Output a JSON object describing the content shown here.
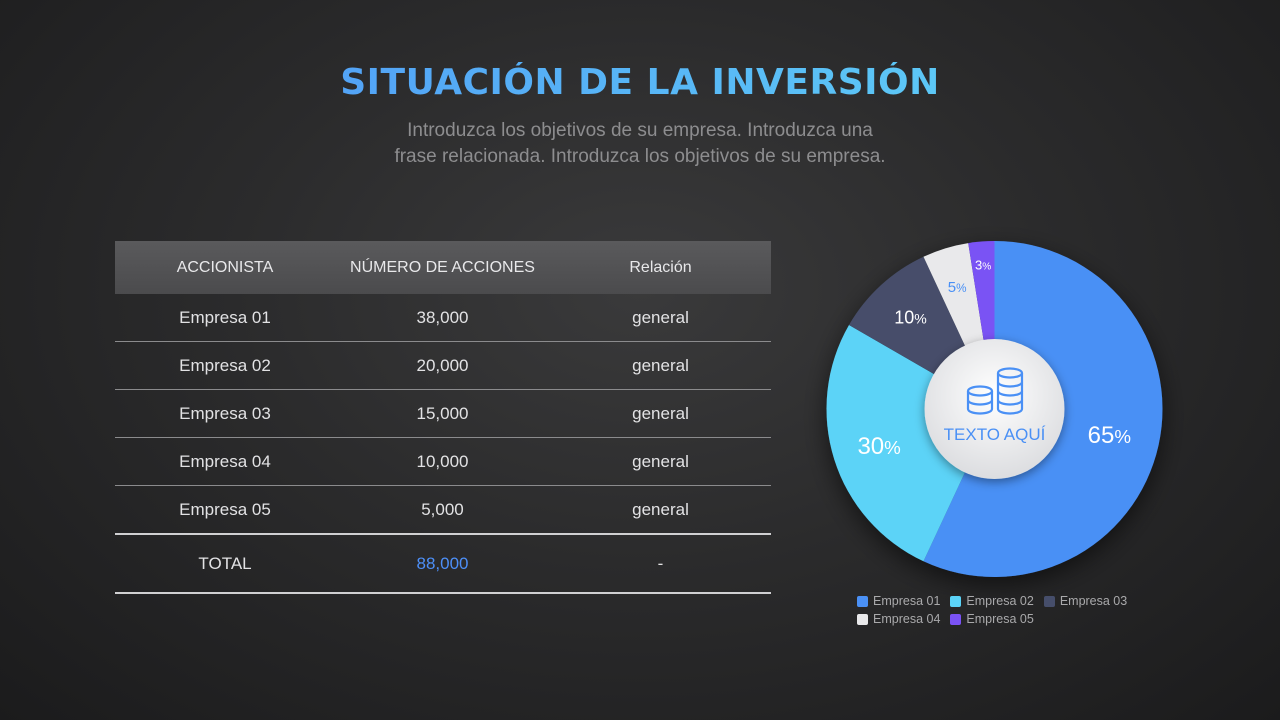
{
  "header": {
    "title": "SITUACIÓN DE LA INVERSIÓN",
    "subtitle_line1": "Introduzca los objetivos de su empresa. Introduzca una",
    "subtitle_line2": "frase relacionada. Introduzca los objetivos de su empresa."
  },
  "table": {
    "headers": [
      "ACCIONISTA",
      "NÚMERO DE ACCIONES",
      "Relación"
    ],
    "rows": [
      [
        "Empresa 01",
        "38,000",
        "general"
      ],
      [
        "Empresa 02",
        "20,000",
        "general"
      ],
      [
        "Empresa 03",
        "15,000",
        "general"
      ],
      [
        "Empresa 04",
        "10,000",
        "general"
      ],
      [
        "Empresa 05",
        "5,000",
        "general"
      ]
    ],
    "total": [
      "TOTAL",
      "88,000",
      "-"
    ]
  },
  "chart_data": {
    "type": "pie",
    "center_label": "TEXTO AQUÍ",
    "center_icon": "coins-stack-icon",
    "percent_sign": "%",
    "slices": [
      {
        "name": "Empresa 01",
        "value": 65,
        "color": "#4a90f5"
      },
      {
        "name": "Empresa 02",
        "value": 30,
        "color": "#5bd3f7"
      },
      {
        "name": "Empresa 03",
        "value": 10,
        "color": "#464e6b"
      },
      {
        "name": "Empresa 04",
        "value": 5,
        "color": "#e9e9eb"
      },
      {
        "name": "Empresa 05",
        "value": 3,
        "color": "#7a52f4"
      }
    ],
    "legend_position": "bottom"
  }
}
